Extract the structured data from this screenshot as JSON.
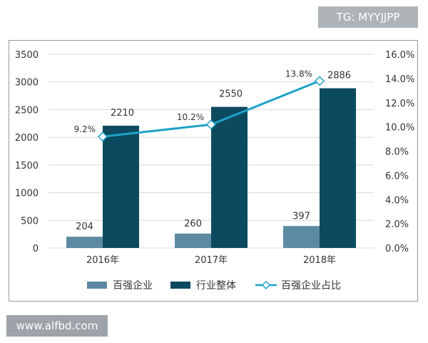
{
  "top_watermark": "TG: MYYJJPP",
  "bottom_watermark": "www.alfbd.com",
  "colors": {
    "bar_top100": "#5b8aa2",
    "bar_industry": "#0c4a5f",
    "line_share": "#1fa2c9",
    "grid": "#d9d9d9",
    "axis_text": "#333333"
  },
  "chart_data": {
    "type": "bar",
    "categories": [
      "2016年",
      "2017年",
      "2018年"
    ],
    "series": [
      {
        "name": "百强企业",
        "type": "bar",
        "axis": "left",
        "values": [
          204,
          260,
          397
        ],
        "labels": [
          "204",
          "260",
          "397"
        ]
      },
      {
        "name": "行业整体",
        "type": "bar",
        "axis": "left",
        "values": [
          2210,
          2550,
          2886
        ],
        "labels": [
          "2210",
          "2550",
          "2886"
        ]
      },
      {
        "name": "百强企业占比",
        "type": "line",
        "axis": "right",
        "values": [
          9.2,
          10.2,
          13.8
        ],
        "labels": [
          "9.2%",
          "10.2%",
          "13.8%"
        ]
      }
    ],
    "ylim_left": [
      0,
      3500
    ],
    "yticks_left": [
      "0",
      "500",
      "1000",
      "1500",
      "2000",
      "2500",
      "3000",
      "3500"
    ],
    "ylim_right": [
      0,
      16
    ],
    "yticks_right": [
      "0.0%",
      "2.0%",
      "4.0%",
      "6.0%",
      "8.0%",
      "10.0%",
      "12.0%",
      "14.0%",
      "16.0%"
    ],
    "grid": true,
    "legend_position": "bottom"
  }
}
